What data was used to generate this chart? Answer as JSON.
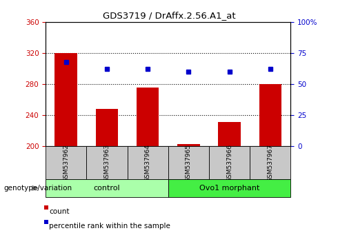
{
  "title": "GDS3719 / DrAffx.2.56.A1_at",
  "samples": [
    "GSM537962",
    "GSM537963",
    "GSM537964",
    "GSM537965",
    "GSM537966",
    "GSM537967"
  ],
  "bar_values": [
    320,
    248,
    276,
    203,
    231,
    280
  ],
  "dot_values": [
    68,
    62,
    62,
    60,
    60,
    62
  ],
  "bar_bottom": 200,
  "ylim_left": [
    200,
    360
  ],
  "ylim_right": [
    0,
    100
  ],
  "yticks_left": [
    200,
    240,
    280,
    320,
    360
  ],
  "yticks_right": [
    0,
    25,
    50,
    75,
    100
  ],
  "ytick_labels_right": [
    "0",
    "25",
    "50",
    "75",
    "100%"
  ],
  "grid_values": [
    240,
    280,
    320
  ],
  "bar_color": "#cc0000",
  "dot_color": "#0000cc",
  "bar_width": 0.55,
  "groups": [
    {
      "label": "control",
      "start": 0,
      "end": 3,
      "color": "#aaffaa"
    },
    {
      "label": "Ovo1 morphant",
      "start": 3,
      "end": 6,
      "color": "#44ee44"
    }
  ],
  "tick_label_color_left": "#cc0000",
  "tick_label_color_right": "#0000cc",
  "bg_xtick": "#c8c8c8"
}
